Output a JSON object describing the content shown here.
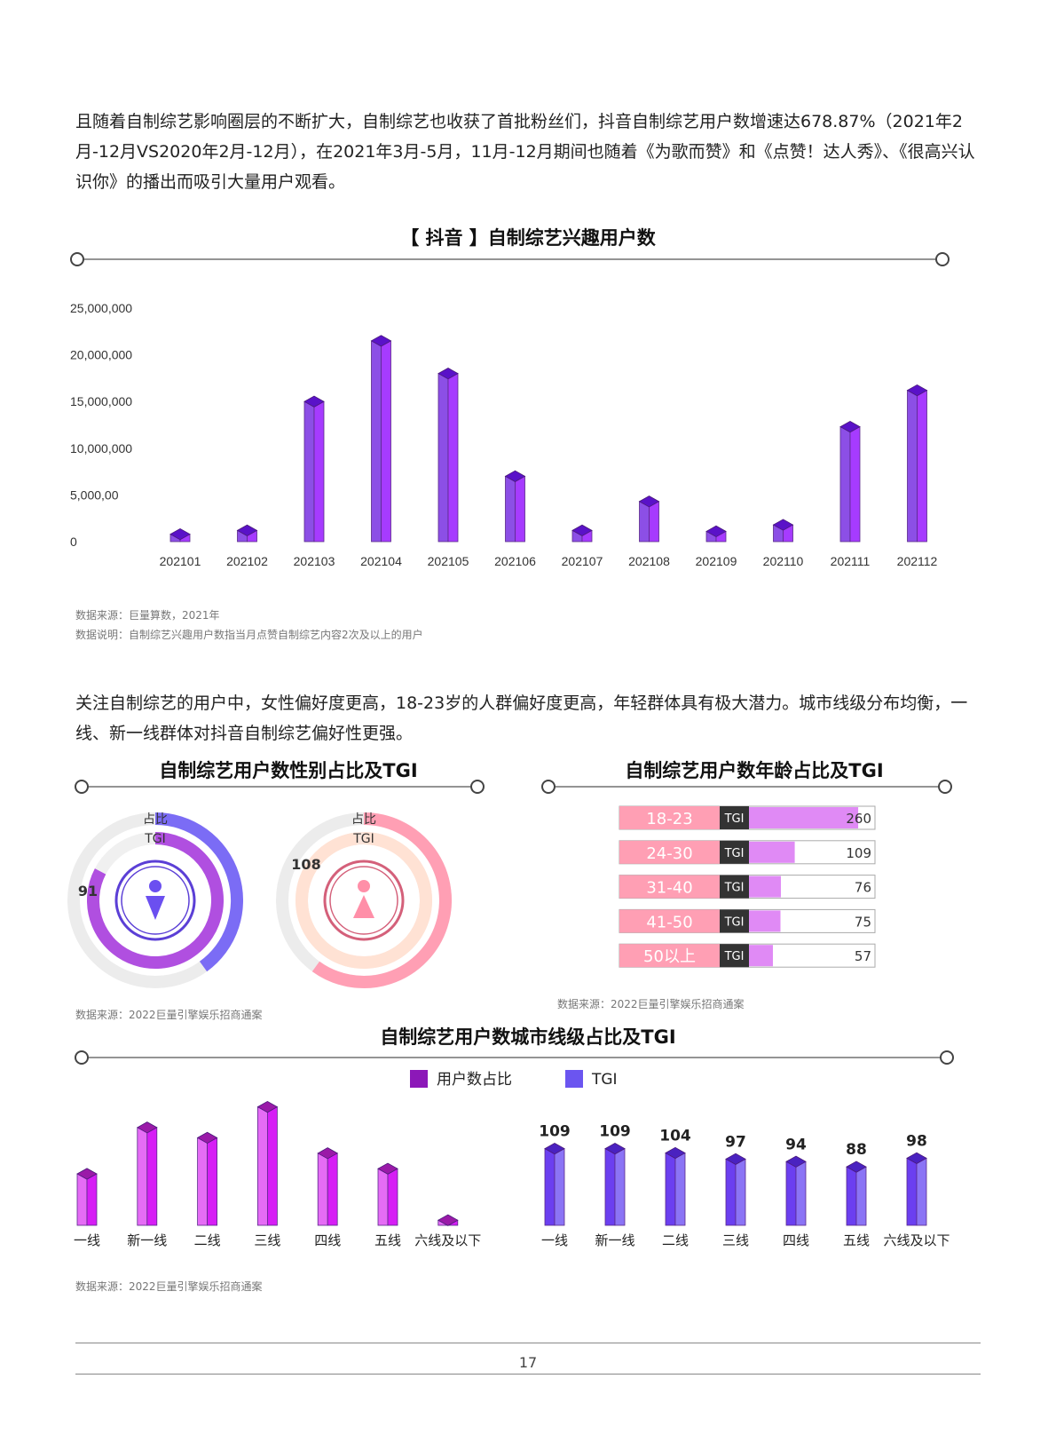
{
  "paragraph1": "且随着自制综艺影响圈层的不断扩大，自制综艺也收获了首批粉丝们，抖音自制综艺用户数增速达678.87%（2021年2月-12月VS2020年2月-12月），在2021年3月-5月，11月-12月期间也随着《为歌而赞》和《点赞！达人秀》、《很高兴认识你》的播出而吸引大量用户观看。",
  "paragraph2": "关注自制综艺的用户中，女性偏好度更高，18-23岁的人群偏好度更高，年轻群体具有极大潜力。城市线级分布均衡，一线、新一线群体对抖音自制综艺偏好性更强。",
  "source1": "数据来源：巨量算数，2021年",
  "note1": "数据说明：自制综艺兴趣用户数指当月点赞自制综艺内容2次及以上的用户",
  "source_gender": "数据来源：2022巨量引擎娱乐招商通案",
  "source_age": "数据来源：2022巨量引擎娱乐招商通案",
  "source_city": "数据来源：2022巨量引擎娱乐招商通案",
  "page_number": "17",
  "colors": {
    "purple_bar": "#9b4ff0",
    "tgi_bar": "#6b3ff0",
    "share_bar": "#d61ef5",
    "pink": "#ff9fb4",
    "male_ring": "#7b6cf5",
    "female_ring": "#ff9fb4"
  },
  "chart_data": [
    {
      "type": "bar",
      "title": "【 抖音 】自制综艺兴趣用户数",
      "categories": [
        "202101",
        "202102",
        "202103",
        "202104",
        "202105",
        "202106",
        "202107",
        "202108",
        "202109",
        "202110",
        "202111",
        "202112"
      ],
      "values": [
        800000,
        1200000,
        15000000,
        21500000,
        18000000,
        7000000,
        1200000,
        4300000,
        1100000,
        1800000,
        12300000,
        16200000
      ],
      "y_tick_labels": [
        "0",
        "5,000,00",
        "10,000,000",
        "15,000,000",
        "20,000,000",
        "25,000,000"
      ],
      "ylim": [
        0,
        25000000
      ]
    },
    {
      "type": "pie",
      "title": "自制综艺用户数性别占比及TGI",
      "ring_labels": [
        "占比",
        "TGI"
      ],
      "groups": [
        {
          "icon": "male-icon",
          "share": 0.4,
          "tgi": 91,
          "tgi_label": "91"
        },
        {
          "icon": "female-icon",
          "share": 0.6,
          "tgi": 108,
          "tgi_label": "108"
        }
      ]
    },
    {
      "type": "bar",
      "title": "自制综艺用户数年龄占比及TGI",
      "tag": "TGI",
      "categories": [
        "18-23",
        "24-30",
        "31-40",
        "41-50",
        "50以上"
      ],
      "values": [
        260,
        109,
        76,
        75,
        57
      ],
      "value_labels": [
        "260",
        "109",
        "76",
        "75",
        "57"
      ],
      "xlim": [
        0,
        300
      ]
    },
    {
      "type": "bar",
      "title": "自制综艺用户数城市线级占比及TGI",
      "legend": [
        "用户数占比",
        "TGI"
      ],
      "series": [
        {
          "name": "用户数占比",
          "categories": [
            "一线",
            "新一线",
            "二线",
            "三线",
            "四线",
            "五线",
            "六线及以下"
          ],
          "values": [
            0.1,
            0.19,
            0.17,
            0.23,
            0.14,
            0.11,
            0.01
          ]
        },
        {
          "name": "TGI",
          "categories": [
            "一线",
            "新一线",
            "二线",
            "三线",
            "四线",
            "五线",
            "六线及以下"
          ],
          "values": [
            109,
            109,
            104,
            97,
            94,
            88,
            98
          ],
          "value_labels": [
            "109",
            "109",
            "104",
            "97",
            "94",
            "88",
            "98"
          ]
        }
      ]
    }
  ]
}
